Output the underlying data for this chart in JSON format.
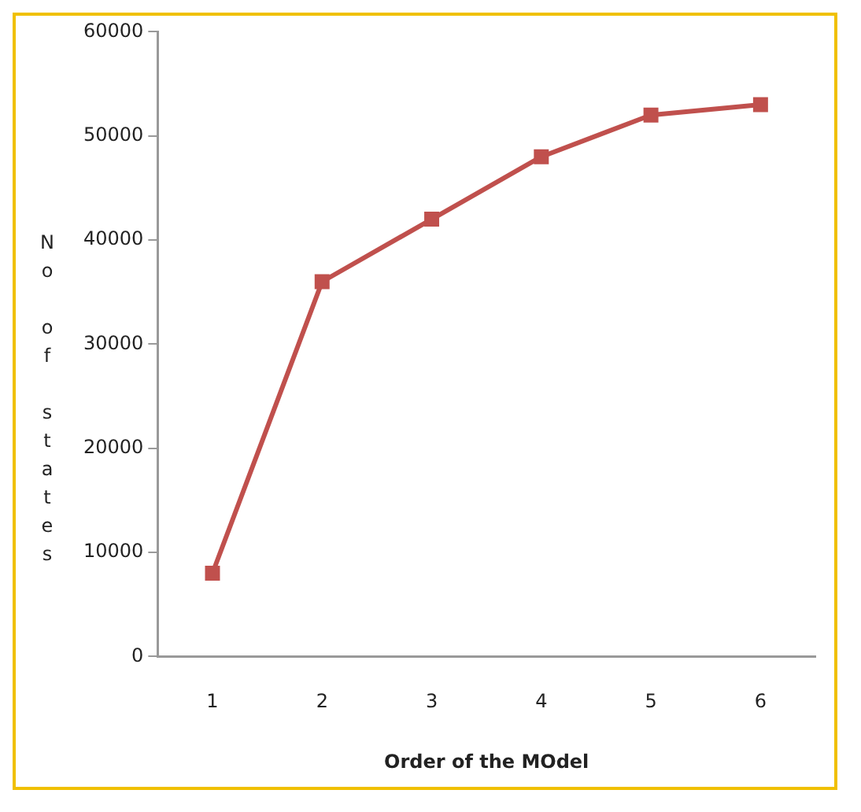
{
  "chart_data": {
    "type": "line",
    "xlabel": "Order of the MOdel",
    "ylabel": "No of states",
    "categories": [
      "1",
      "2",
      "3",
      "4",
      "5",
      "6"
    ],
    "series": [
      {
        "color": "#c0504d",
        "values": [
          8000,
          36000,
          42000,
          48000,
          52000,
          53000
        ]
      }
    ],
    "ylim": [
      0,
      60000
    ],
    "yticks": [
      0,
      10000,
      20000,
      30000,
      40000,
      50000,
      60000
    ],
    "grid": false,
    "legend": false,
    "marker": "square",
    "line_style": "solid"
  }
}
